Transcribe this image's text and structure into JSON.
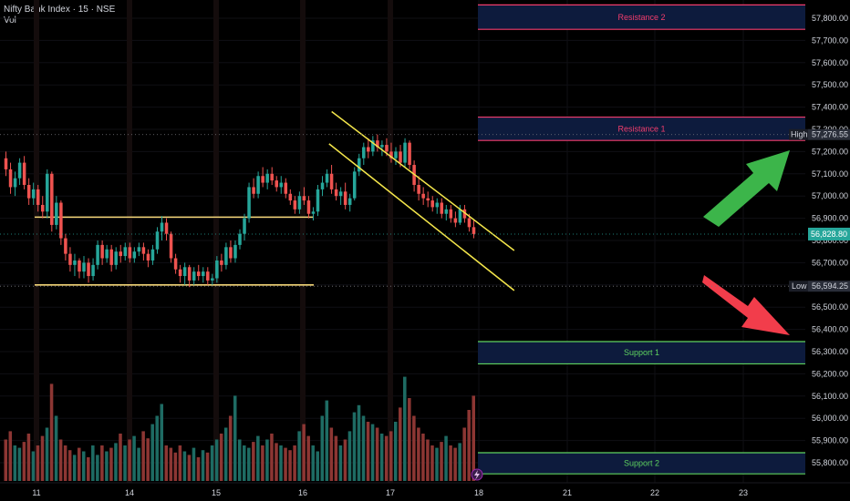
{
  "header": {
    "title": "Nifty Bank Index · 15 · NSE",
    "sub": "Vol"
  },
  "colors": {
    "up": "#26a69a",
    "down": "#ef5350",
    "vol_up": "#1e6b63",
    "vol_down": "#8c3633",
    "resistance": "#f23d6d",
    "support": "#5fd35f",
    "zone_fill": "#0d1b3d",
    "channel": "#f5e74b",
    "range": "#f5d778",
    "arrow_up": "#3cb54a",
    "arrow_down": "#f23d4b"
  },
  "chart_data": {
    "type": "candlestick",
    "title": "Nifty Bank Index · 15 · NSE",
    "ylim": [
      55710,
      57950
    ],
    "y_ticks": [
      "57,800.00",
      "57,700.00",
      "57,600.00",
      "57,500.00",
      "57,400.00",
      "57,300.00",
      "57,200.00",
      "57,100.00",
      "57,000.00",
      "56,900.00",
      "56,800.00",
      "56,700.00",
      "56,600.00",
      "56,500.00",
      "56,400.00",
      "56,300.00",
      "56,200.00",
      "56,100.00",
      "56,000.00",
      "55,900.00",
      "55,800.00"
    ],
    "x_ticks": [
      "11",
      "14",
      "15",
      "16",
      "17",
      "18",
      "21",
      "22",
      "23"
    ],
    "price_tags": {
      "high_label": "High",
      "high_value": "57,276.55",
      "last_value": "56,828.80",
      "low_label": "Low",
      "low_value": "56,594.25"
    },
    "zones": [
      {
        "name": "Resistance 2",
        "low": 57750,
        "high": 57860,
        "kind": "resistance"
      },
      {
        "name": "Resistance 1",
        "low": 57250,
        "high": 57355,
        "kind": "resistance"
      },
      {
        "name": "Support 1",
        "low": 56245,
        "high": 56345,
        "kind": "support"
      },
      {
        "name": "Support 2",
        "low": 55750,
        "high": 55845,
        "kind": "support"
      }
    ],
    "range_lines": [
      56905,
      56600
    ],
    "channel": [
      {
        "from": [
          16.33,
          57380
        ],
        "to": [
          18.4,
          56755
        ]
      },
      {
        "from": [
          16.3,
          57235
        ],
        "to": [
          18.4,
          56575
        ]
      }
    ],
    "candles": [
      [
        57170,
        57200,
        57090,
        57120
      ],
      [
        57120,
        57150,
        57010,
        57040
      ],
      [
        57040,
        57110,
        57000,
        57080
      ],
      [
        57080,
        57170,
        57050,
        57150
      ],
      [
        57150,
        57180,
        57030,
        57050
      ],
      [
        57050,
        57080,
        56960,
        56990
      ],
      [
        56990,
        57060,
        56960,
        57030
      ],
      [
        57030,
        57050,
        56930,
        56960
      ],
      [
        56960,
        57000,
        56900,
        56930
      ],
      [
        56930,
        57120,
        56900,
        57100
      ],
      [
        57100,
        57110,
        56840,
        56870
      ],
      [
        56870,
        57000,
        56850,
        56970
      ],
      [
        56970,
        56980,
        56780,
        56810
      ],
      [
        56810,
        56830,
        56710,
        56740
      ],
      [
        56740,
        56770,
        56660,
        56690
      ],
      [
        56690,
        56740,
        56640,
        56710
      ],
      [
        56710,
        56720,
        56630,
        56660
      ],
      [
        56660,
        56730,
        56630,
        56700
      ],
      [
        56700,
        56720,
        56610,
        56640
      ],
      [
        56640,
        56720,
        56620,
        56690
      ],
      [
        56690,
        56800,
        56670,
        56780
      ],
      [
        56780,
        56800,
        56690,
        56720
      ],
      [
        56720,
        56780,
        56700,
        56760
      ],
      [
        56760,
        56780,
        56660,
        56690
      ],
      [
        56690,
        56770,
        56670,
        56750
      ],
      [
        56750,
        56780,
        56700,
        56730
      ],
      [
        56730,
        56790,
        56710,
        56770
      ],
      [
        56770,
        56790,
        56700,
        56720
      ],
      [
        56720,
        56770,
        56700,
        56750
      ],
      [
        56750,
        56790,
        56730,
        56770
      ],
      [
        56770,
        56790,
        56710,
        56740
      ],
      [
        56740,
        56760,
        56680,
        56710
      ],
      [
        56710,
        56780,
        56690,
        56760
      ],
      [
        56760,
        56860,
        56740,
        56840
      ],
      [
        56840,
        56910,
        56800,
        56880
      ],
      [
        56880,
        56900,
        56800,
        56830
      ],
      [
        56830,
        56840,
        56700,
        56720
      ],
      [
        56720,
        56740,
        56650,
        56670
      ],
      [
        56670,
        56690,
        56610,
        56640
      ],
      [
        56640,
        56700,
        56600,
        56680
      ],
      [
        56680,
        56690,
        56590,
        56620
      ],
      [
        56620,
        56680,
        56600,
        56660
      ],
      [
        56660,
        56690,
        56620,
        56640
      ],
      [
        56640,
        56680,
        56610,
        56660
      ],
      [
        56660,
        56680,
        56600,
        56620
      ],
      [
        56620,
        56650,
        56600,
        56630
      ],
      [
        56630,
        56730,
        56610,
        56710
      ],
      [
        56710,
        56740,
        56660,
        56690
      ],
      [
        56690,
        56790,
        56670,
        56770
      ],
      [
        56770,
        56800,
        56700,
        56720
      ],
      [
        56720,
        56800,
        56700,
        56780
      ],
      [
        56780,
        56850,
        56760,
        56830
      ],
      [
        56830,
        56920,
        56800,
        56900
      ],
      [
        56900,
        57060,
        56880,
        57040
      ],
      [
        57040,
        57080,
        56990,
        57010
      ],
      [
        57010,
        57110,
        56990,
        57090
      ],
      [
        57090,
        57130,
        57040,
        57060
      ],
      [
        57060,
        57120,
        57030,
        57100
      ],
      [
        57100,
        57130,
        57050,
        57070
      ],
      [
        57070,
        57090,
        57020,
        57040
      ],
      [
        57040,
        57090,
        57010,
        57060
      ],
      [
        57060,
        57080,
        56990,
        57010
      ],
      [
        57010,
        57030,
        56960,
        56980
      ],
      [
        56980,
        57000,
        56920,
        56940
      ],
      [
        56940,
        57020,
        56920,
        57000
      ],
      [
        57000,
        57040,
        56960,
        56980
      ],
      [
        56980,
        57000,
        56900,
        56920
      ],
      [
        56920,
        56950,
        56890,
        56930
      ],
      [
        56930,
        57050,
        56910,
        57030
      ],
      [
        57030,
        57090,
        57000,
        57060
      ],
      [
        57060,
        57120,
        57040,
        57100
      ],
      [
        57100,
        57140,
        57010,
        57030
      ],
      [
        57030,
        57060,
        56980,
        57000
      ],
      [
        57000,
        57040,
        56960,
        57020
      ],
      [
        57020,
        57060,
        56940,
        56960
      ],
      [
        56960,
        57010,
        56930,
        56990
      ],
      [
        56990,
        57130,
        56980,
        57110
      ],
      [
        57110,
        57190,
        57090,
        57170
      ],
      [
        57170,
        57240,
        57140,
        57220
      ],
      [
        57220,
        57260,
        57170,
        57200
      ],
      [
        57200,
        57270,
        57180,
        57250
      ],
      [
        57250,
        57277,
        57200,
        57220
      ],
      [
        57220,
        57250,
        57180,
        57230
      ],
      [
        57230,
        57260,
        57180,
        57200
      ],
      [
        57200,
        57240,
        57150,
        57170
      ],
      [
        57170,
        57220,
        57140,
        57200
      ],
      [
        57200,
        57230,
        57130,
        57150
      ],
      [
        57150,
        57260,
        57130,
        57240
      ],
      [
        57240,
        57250,
        57120,
        57140
      ],
      [
        57140,
        57160,
        57020,
        57050
      ],
      [
        57050,
        57090,
        56980,
        57010
      ],
      [
        57010,
        57040,
        56960,
        56990
      ],
      [
        56990,
        57020,
        56950,
        56980
      ],
      [
        56980,
        57000,
        56930,
        56950
      ],
      [
        56950,
        56990,
        56920,
        56970
      ],
      [
        56970,
        56990,
        56900,
        56920
      ],
      [
        56920,
        56960,
        56890,
        56940
      ],
      [
        56940,
        56960,
        56880,
        56900
      ],
      [
        56900,
        56930,
        56860,
        56880
      ],
      [
        56880,
        56960,
        56870,
        56940
      ],
      [
        56940,
        56960,
        56880,
        56900
      ],
      [
        56900,
        56920,
        56840,
        56860
      ],
      [
        56860,
        56890,
        56810,
        56829
      ]
    ],
    "volumes": [
      0.35,
      0.42,
      0.3,
      0.28,
      0.33,
      0.4,
      0.25,
      0.3,
      0.38,
      0.45,
      0.82,
      0.55,
      0.35,
      0.3,
      0.26,
      0.22,
      0.28,
      0.25,
      0.2,
      0.3,
      0.22,
      0.3,
      0.25,
      0.28,
      0.32,
      0.4,
      0.3,
      0.35,
      0.38,
      0.28,
      0.42,
      0.36,
      0.48,
      0.55,
      0.65,
      0.3,
      0.28,
      0.24,
      0.3,
      0.25,
      0.22,
      0.28,
      0.2,
      0.26,
      0.24,
      0.3,
      0.35,
      0.4,
      0.45,
      0.55,
      0.72,
      0.35,
      0.3,
      0.28,
      0.33,
      0.38,
      0.3,
      0.35,
      0.4,
      0.32,
      0.3,
      0.28,
      0.26,
      0.3,
      0.42,
      0.48,
      0.38,
      0.3,
      0.25,
      0.55,
      0.68,
      0.45,
      0.38,
      0.3,
      0.35,
      0.42,
      0.58,
      0.64,
      0.55,
      0.5,
      0.48,
      0.45,
      0.4,
      0.38,
      0.42,
      0.5,
      0.62,
      0.88,
      0.7,
      0.55,
      0.45,
      0.4,
      0.35,
      0.3,
      0.28,
      0.33,
      0.38,
      0.3,
      0.28,
      0.32,
      0.45,
      0.6,
      0.72
    ]
  }
}
